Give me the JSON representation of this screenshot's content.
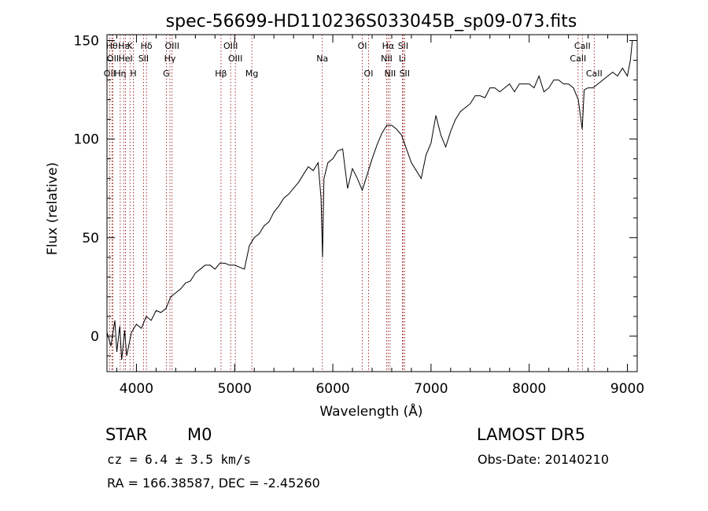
{
  "chart_data": {
    "type": "line",
    "title": "spec-56699-HD110236S033045B_sp09-073.fits",
    "xlabel": "Wavelength (Å)",
    "ylabel": "Flux (relative)",
    "xlim": [
      3700,
      9100
    ],
    "ylim": [
      -18,
      153
    ],
    "xticks": [
      4000,
      5000,
      6000,
      7000,
      8000,
      9000
    ],
    "yticks": [
      0,
      50,
      100,
      150
    ],
    "grid": false,
    "legend": "none",
    "line_color": "#000000",
    "marker_color": "#8b0000",
    "series": [
      {
        "x": [
          3700,
          3740,
          3780,
          3800,
          3830,
          3850,
          3880,
          3900,
          3950,
          4000,
          4050,
          4100,
          4150,
          4200,
          4250,
          4300,
          4350,
          4400,
          4450,
          4500,
          4550,
          4600,
          4650,
          4700,
          4750,
          4800,
          4850,
          4900,
          4950,
          5000,
          5050,
          5100,
          5150,
          5200,
          5250,
          5300,
          5350,
          5400,
          5450,
          5500,
          5550,
          5600,
          5650,
          5700,
          5750,
          5800,
          5850,
          5880,
          5895,
          5910,
          5950,
          6000,
          6050,
          6100,
          6150,
          6200,
          6250,
          6300,
          6350,
          6400,
          6450,
          6500,
          6550,
          6600,
          6650,
          6700,
          6750,
          6800,
          6850,
          6900,
          6950,
          7000,
          7050,
          7100,
          7150,
          7200,
          7250,
          7300,
          7350,
          7400,
          7450,
          7500,
          7550,
          7600,
          7650,
          7700,
          7750,
          7800,
          7850,
          7900,
          7950,
          8000,
          8050,
          8100,
          8150,
          8200,
          8250,
          8300,
          8350,
          8400,
          8450,
          8500,
          8540,
          8560,
          8600,
          8650,
          8700,
          8750,
          8800,
          8850,
          8900,
          8950,
          9000,
          9030,
          9050
        ],
        "values": [
          2,
          -5,
          8,
          -8,
          5,
          -12,
          3,
          -10,
          2,
          6,
          4,
          10,
          8,
          13,
          12,
          14,
          20,
          22,
          24,
          27,
          28,
          32,
          34,
          36,
          36,
          34,
          37,
          37,
          36,
          36,
          35,
          34,
          46,
          50,
          52,
          56,
          58,
          63,
          66,
          70,
          72,
          75,
          78,
          82,
          86,
          84,
          88,
          70,
          40,
          80,
          88,
          90,
          94,
          95,
          75,
          85,
          80,
          74,
          82,
          90,
          97,
          103,
          107,
          107,
          105,
          102,
          95,
          88,
          84,
          80,
          92,
          98,
          112,
          102,
          96,
          104,
          110,
          114,
          116,
          118,
          122,
          122,
          121,
          126,
          126,
          124,
          126,
          128,
          124,
          128,
          128,
          128,
          126,
          132,
          124,
          126,
          130,
          130,
          128,
          128,
          126,
          120,
          105,
          125,
          126,
          126,
          128,
          130,
          132,
          134,
          132,
          136,
          132,
          140,
          150
        ]
      }
    ],
    "line_markers": [
      {
        "x": 3727,
        "labels": [
          "OII"
        ],
        "rows": [
          3
        ]
      },
      {
        "x": 3750,
        "labels": [
          "Hθ"
        ],
        "rows": [
          1
        ]
      },
      {
        "x": 3760,
        "labels": [
          "OII"
        ],
        "rows": [
          2
        ]
      },
      {
        "x": 3835,
        "labels": [
          "Hη"
        ],
        "rows": [
          3
        ]
      },
      {
        "x": 3870,
        "labels": [
          "Hε"
        ],
        "rows": [
          1
        ]
      },
      {
        "x": 3889,
        "labels": [
          "HeI"
        ],
        "rows": [
          2
        ]
      },
      {
        "x": 3934,
        "labels": [
          "K"
        ],
        "rows": [
          1
        ]
      },
      {
        "x": 3969,
        "labels": [
          "H"
        ],
        "rows": [
          3
        ]
      },
      {
        "x": 4072,
        "labels": [
          "SII"
        ],
        "rows": [
          2
        ]
      },
      {
        "x": 4102,
        "labels": [
          "Hδ"
        ],
        "rows": [
          1
        ]
      },
      {
        "x": 4304,
        "labels": [
          "G"
        ],
        "rows": [
          3
        ]
      },
      {
        "x": 4341,
        "labels": [
          "Hγ"
        ],
        "rows": [
          2
        ]
      },
      {
        "x": 4363,
        "labels": [
          "OIII"
        ],
        "rows": [
          1
        ]
      },
      {
        "x": 4861,
        "labels": [
          "Hβ"
        ],
        "rows": [
          3
        ]
      },
      {
        "x": 4959,
        "labels": [
          "OIII"
        ],
        "rows": [
          1
        ]
      },
      {
        "x": 5007,
        "labels": [
          "OIII"
        ],
        "rows": [
          2
        ]
      },
      {
        "x": 5175,
        "labels": [
          "Mg"
        ],
        "rows": [
          3
        ]
      },
      {
        "x": 5893,
        "labels": [
          "Na"
        ],
        "rows": [
          2
        ]
      },
      {
        "x": 6300,
        "labels": [
          "OI"
        ],
        "rows": [
          1
        ]
      },
      {
        "x": 6364,
        "labels": [
          "OI"
        ],
        "rows": [
          3
        ]
      },
      {
        "x": 6548,
        "labels": [
          "NII"
        ],
        "rows": [
          2
        ]
      },
      {
        "x": 6563,
        "labels": [
          "Hα"
        ],
        "rows": [
          1
        ]
      },
      {
        "x": 6583,
        "labels": [
          "NII"
        ],
        "rows": [
          3
        ]
      },
      {
        "x": 6708,
        "labels": [
          "Li"
        ],
        "rows": [
          2
        ]
      },
      {
        "x": 6716,
        "labels": [
          "SII"
        ],
        "rows": [
          1
        ]
      },
      {
        "x": 6731,
        "labels": [
          "SII"
        ],
        "rows": [
          3
        ]
      },
      {
        "x": 8498,
        "labels": [
          "CaII"
        ],
        "rows": [
          2
        ]
      },
      {
        "x": 8542,
        "labels": [
          "CaII"
        ],
        "rows": [
          1
        ]
      },
      {
        "x": 8662,
        "labels": [
          "CaII"
        ],
        "rows": [
          3
        ]
      }
    ]
  },
  "info": {
    "class_label": "STAR",
    "subclass": "M0",
    "survey": "LAMOST DR5",
    "cz": "cz = 6.4 ± 3.5 km/s",
    "obs_date": "Obs-Date: 20140210",
    "coords": "RA = 166.38587, DEC =  -2.45260"
  }
}
